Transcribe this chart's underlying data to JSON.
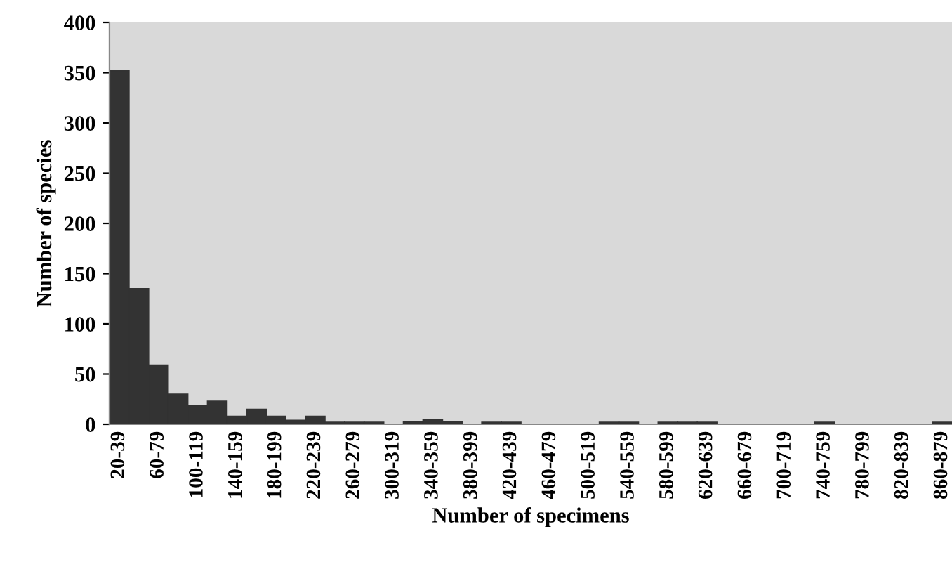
{
  "chart_data": {
    "type": "bar",
    "xlabel": "Number of specimens",
    "ylabel": "Number of species",
    "categories": [
      "20-39",
      null,
      "60-79",
      null,
      "100-119",
      null,
      "140-159",
      null,
      "180-199",
      null,
      "220-239",
      null,
      "260-279",
      null,
      "300-319",
      null,
      "340-359",
      null,
      "380-399",
      null,
      "420-439",
      null,
      "460-479",
      null,
      "500-519",
      null,
      "540-559",
      null,
      "580-599",
      null,
      "620-639",
      null,
      "660-679",
      null,
      "700-719",
      null,
      "740-759",
      null,
      "780-799",
      null,
      "820-839",
      null,
      "860-879"
    ],
    "values": [
      352,
      135,
      59,
      30,
      19,
      23,
      8,
      15,
      8,
      4,
      8,
      2,
      2,
      2,
      0,
      3,
      5,
      3,
      0,
      2,
      2,
      0,
      0,
      0,
      0,
      2,
      2,
      0,
      2,
      2,
      2,
      0,
      0,
      0,
      0,
      0,
      2,
      0,
      0,
      0,
      0,
      0,
      2
    ],
    "color": "#333333",
    "ylim": [
      0,
      400
    ],
    "yticks": [
      0,
      50,
      100,
      150,
      200,
      250,
      300,
      350,
      400
    ],
    "grid": false,
    "legend": false
  }
}
